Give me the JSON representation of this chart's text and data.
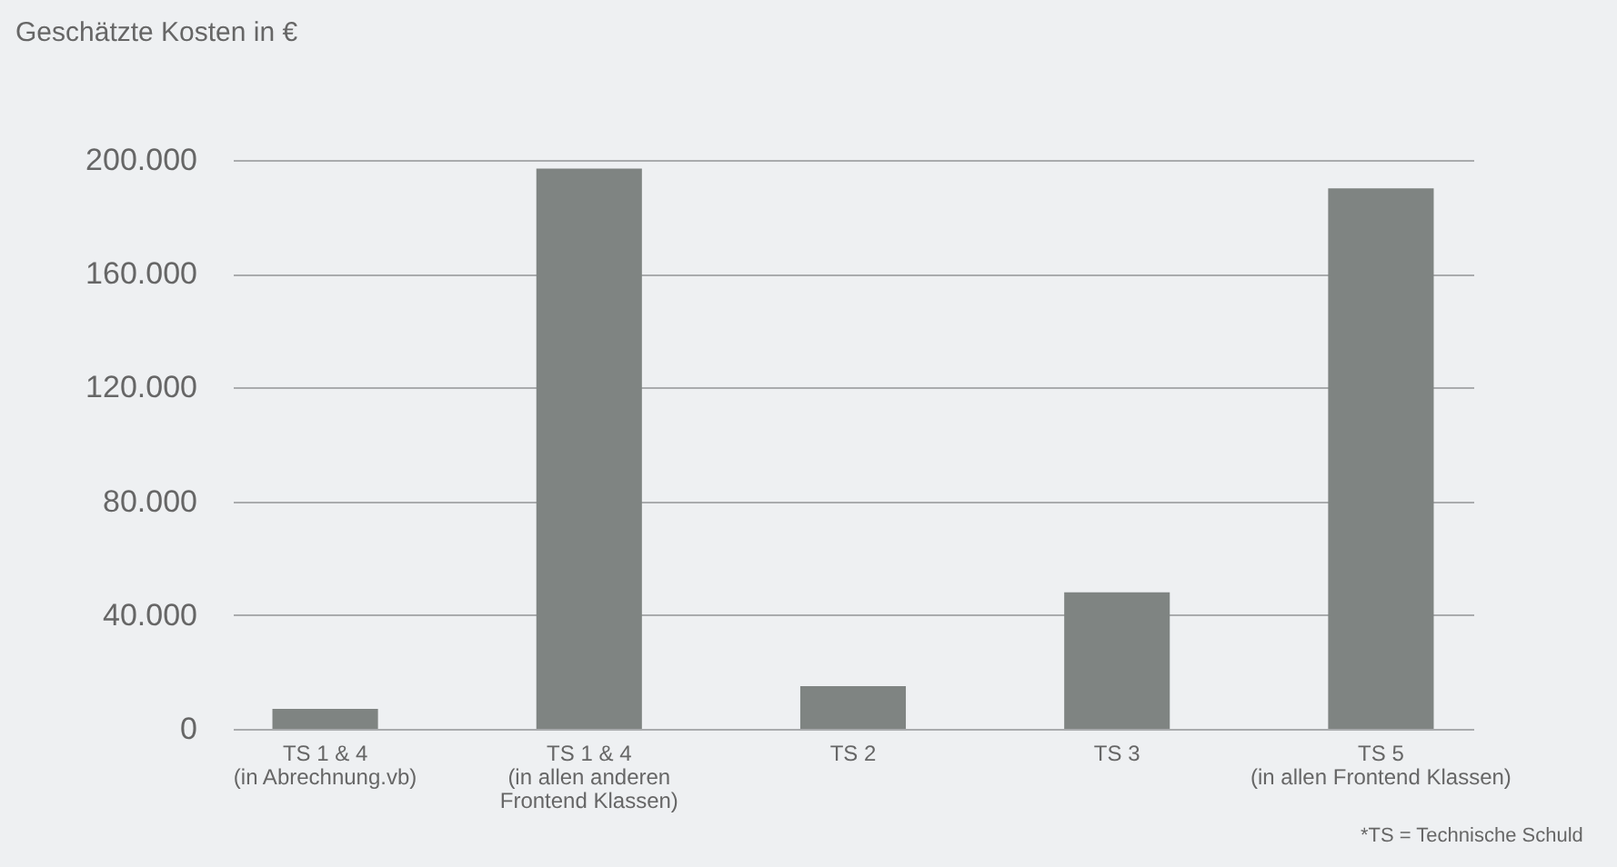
{
  "chart_data": {
    "type": "bar",
    "ylabel": "Geschätzte Kosten in €",
    "categories": [
      "TS 1 & 4\n(in Abrechnung.vb)",
      "TS 1 & 4\n(in allen anderen\nFrontend Klassen)",
      "TS 2",
      "TS 3",
      "TS 5\n(in allen Frontend Klassen)"
    ],
    "values": [
      7000,
      197000,
      15000,
      48000,
      190000
    ],
    "color": "#7f8482",
    "ylim": [
      0,
      200000
    ],
    "yticks": [
      {
        "value": 0,
        "label": "0"
      },
      {
        "value": 40000,
        "label": "40.000"
      },
      {
        "value": 80000,
        "label": "80.000"
      },
      {
        "value": 120000,
        "label": "120.000"
      },
      {
        "value": 160000,
        "label": "160.000"
      },
      {
        "value": 200000,
        "label": "200.000"
      }
    ],
    "grid": true,
    "annotations": [
      "*TS = Technische Schuld"
    ]
  }
}
